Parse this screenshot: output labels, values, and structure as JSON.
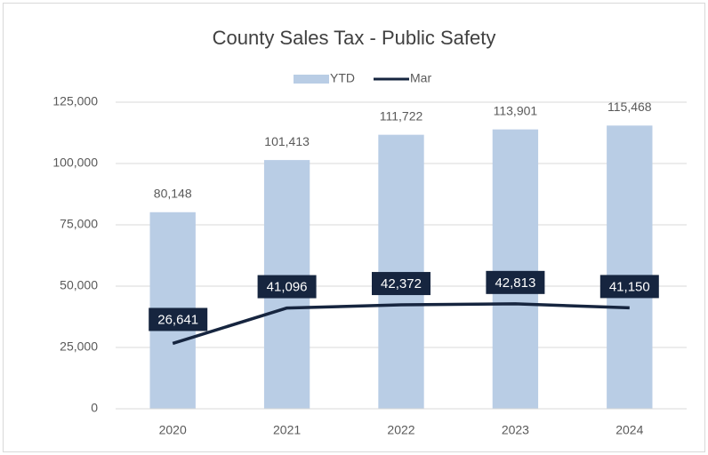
{
  "chart_data": {
    "type": "bar",
    "title": "County Sales Tax - Public Safety",
    "categories": [
      "2020",
      "2021",
      "2022",
      "2023",
      "2024"
    ],
    "series": [
      {
        "name": "YTD",
        "type": "bar",
        "color": "#b9cde5",
        "values": [
          80148,
          101413,
          111722,
          113901,
          115468
        ],
        "value_labels": [
          "80,148",
          "101,413",
          "111,722",
          "113,901",
          "115,468"
        ]
      },
      {
        "name": "Mar",
        "type": "line",
        "color": "#16253f",
        "values": [
          26641,
          41096,
          42372,
          42813,
          41150
        ],
        "value_labels": [
          "26,641",
          "41,096",
          "42,372",
          "42,813",
          "41,150"
        ]
      }
    ],
    "ylim": [
      0,
      125000
    ],
    "yticks": [
      0,
      {
        "value": 25000,
        "label": "25,000"
      },
      {
        "value": 50000,
        "label": "50,000"
      },
      {
        "value": 75000,
        "label": "75,000"
      },
      {
        "value": 100000,
        "label": "100,000"
      },
      {
        "value": 125000,
        "label": "125,000"
      }
    ],
    "grid": true,
    "legend": "top"
  }
}
